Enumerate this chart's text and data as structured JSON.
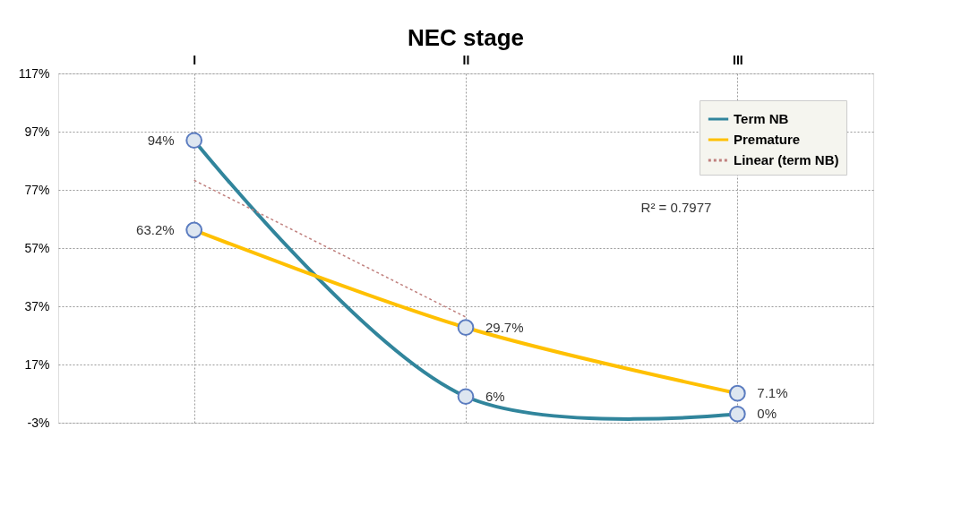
{
  "chart_data": {
    "type": "line",
    "title": "NEC stage",
    "categories": [
      "I",
      "II",
      "III"
    ],
    "ylim": [
      -3,
      117
    ],
    "yticks": [
      {
        "value": -3,
        "label": "-3%"
      },
      {
        "value": 17,
        "label": "17%"
      },
      {
        "value": 37,
        "label": "37%"
      },
      {
        "value": 57,
        "label": "57%"
      },
      {
        "value": 77,
        "label": "77%"
      },
      {
        "value": 97,
        "label": "97%"
      },
      {
        "value": 117,
        "label": "117%"
      }
    ],
    "series": [
      {
        "name": "Term NB",
        "color": "#31859c",
        "values": [
          94,
          6,
          0
        ],
        "value_labels": [
          "94%",
          "6%",
          "0%"
        ],
        "marker": "circle",
        "line_style": "solid"
      },
      {
        "name": "Premature",
        "color": "#ffc000",
        "values": [
          63.2,
          29.7,
          7.1
        ],
        "value_labels": [
          "63.2%",
          "29.7%",
          "7.1%"
        ],
        "marker": "circle",
        "line_style": "solid"
      },
      {
        "name": "Linear (term NB)",
        "color": "#c0807e",
        "values": [
          80.3,
          33.3,
          null
        ],
        "marker": "none",
        "line_style": "dotted"
      }
    ],
    "annotations": [
      "R² = 0.7977"
    ],
    "grid": true,
    "legend": "top right"
  }
}
